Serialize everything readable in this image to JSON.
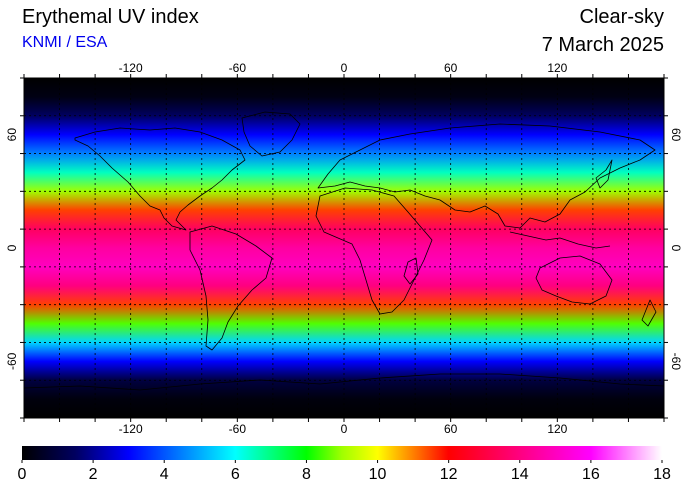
{
  "header": {
    "title": "Erythemal UV index",
    "credit": "KNMI / ESA",
    "mode": "Clear-sky",
    "date": "7 March 2025"
  },
  "map": {
    "projection": "equirectangular",
    "lon_range": [
      -180,
      180
    ],
    "lat_range": [
      -90,
      90
    ],
    "lon_ticks": [
      {
        "value": -120,
        "label": "-120"
      },
      {
        "value": -60,
        "label": "-60"
      },
      {
        "value": 0,
        "label": "0"
      },
      {
        "value": 60,
        "label": "60"
      },
      {
        "value": 120,
        "label": "120"
      }
    ],
    "lat_ticks": [
      {
        "value": 60,
        "label": "60"
      },
      {
        "value": 0,
        "label": "0"
      },
      {
        "value": -60,
        "label": "-60"
      }
    ],
    "grid_lon_step": 20,
    "grid_lat_step": 20,
    "grid": true,
    "uv_profile_by_latitude": [
      {
        "lat": 90,
        "uv": 0.0
      },
      {
        "lat": 80,
        "uv": 0.3
      },
      {
        "lat": 70,
        "uv": 1.5
      },
      {
        "lat": 60,
        "uv": 3.0
      },
      {
        "lat": 50,
        "uv": 4.5
      },
      {
        "lat": 40,
        "uv": 6.5
      },
      {
        "lat": 30,
        "uv": 9.0
      },
      {
        "lat": 20,
        "uv": 11.5
      },
      {
        "lat": 10,
        "uv": 13.5
      },
      {
        "lat": 0,
        "uv": 14.5
      },
      {
        "lat": -10,
        "uv": 15.0
      },
      {
        "lat": -20,
        "uv": 14.0
      },
      {
        "lat": -30,
        "uv": 11.5
      },
      {
        "lat": -40,
        "uv": 8.5
      },
      {
        "lat": -50,
        "uv": 5.5
      },
      {
        "lat": -60,
        "uv": 3.0
      },
      {
        "lat": -70,
        "uv": 1.0
      },
      {
        "lat": -80,
        "uv": 0.2
      },
      {
        "lat": -90,
        "uv": 0.0
      }
    ]
  },
  "colorbar": {
    "min": 0,
    "max": 18,
    "ticks": [
      {
        "value": 0,
        "label": "0"
      },
      {
        "value": 2,
        "label": "2"
      },
      {
        "value": 4,
        "label": "4"
      },
      {
        "value": 6,
        "label": "6"
      },
      {
        "value": 8,
        "label": "8"
      },
      {
        "value": 10,
        "label": "10"
      },
      {
        "value": 12,
        "label": "12"
      },
      {
        "value": 14,
        "label": "14"
      },
      {
        "value": 16,
        "label": "16"
      },
      {
        "value": 18,
        "label": "18"
      }
    ],
    "stops": [
      {
        "value": 0,
        "color": "#000000"
      },
      {
        "value": 1.5,
        "color": "#000060"
      },
      {
        "value": 3,
        "color": "#0000ff"
      },
      {
        "value": 4.5,
        "color": "#0080ff"
      },
      {
        "value": 6,
        "color": "#00ffff"
      },
      {
        "value": 7,
        "color": "#00ff80"
      },
      {
        "value": 8,
        "color": "#00ff00"
      },
      {
        "value": 9,
        "color": "#a0ff00"
      },
      {
        "value": 10,
        "color": "#ffff00"
      },
      {
        "value": 11,
        "color": "#ff8000"
      },
      {
        "value": 12,
        "color": "#ff0000"
      },
      {
        "value": 14,
        "color": "#ff0080"
      },
      {
        "value": 16,
        "color": "#ff00ff"
      },
      {
        "value": 17,
        "color": "#ff80ff"
      },
      {
        "value": 18,
        "color": "#ffffff"
      }
    ]
  }
}
